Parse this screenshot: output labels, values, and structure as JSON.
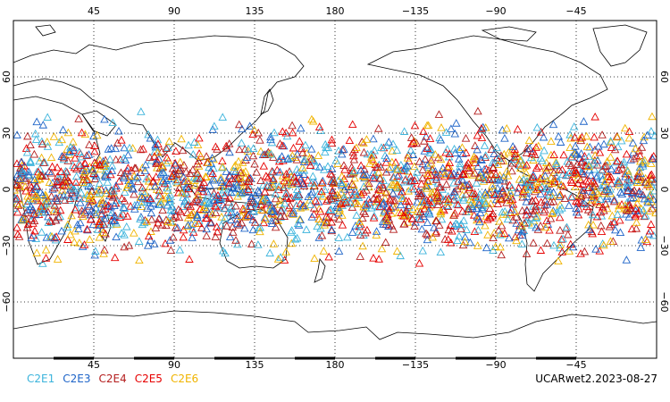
{
  "map": {
    "projection": "cylindrical-equidistant",
    "lon_range": [
      0,
      360
    ],
    "lat_range": [
      -90,
      90
    ],
    "lon_ticks": [
      {
        "value": 45,
        "label": "45"
      },
      {
        "value": 90,
        "label": "90"
      },
      {
        "value": 135,
        "label": "135"
      },
      {
        "value": 180,
        "label": "180"
      },
      {
        "value": 225,
        "label": "−135"
      },
      {
        "value": 270,
        "label": "−90"
      },
      {
        "value": 315,
        "label": "−45"
      }
    ],
    "lat_ticks": [
      {
        "value": 60,
        "label": "60"
      },
      {
        "value": 30,
        "label": "30"
      },
      {
        "value": 0,
        "label": "0"
      },
      {
        "value": -30,
        "label": "−30"
      },
      {
        "value": -60,
        "label": "−60"
      }
    ],
    "grid": "dotted",
    "marker": "triangle-outline",
    "observation_band": [
      -45,
      45
    ]
  },
  "legend": [
    {
      "label": "C2E1",
      "color": "#3cb4dc"
    },
    {
      "label": "C2E3",
      "color": "#1e64c8"
    },
    {
      "label": "C2E4",
      "color": "#b41e1e"
    },
    {
      "label": "C2E5",
      "color": "#e60000"
    },
    {
      "label": "C2E6",
      "color": "#f0b400"
    }
  ],
  "caption": "UCARwet2.2023-08-27"
}
